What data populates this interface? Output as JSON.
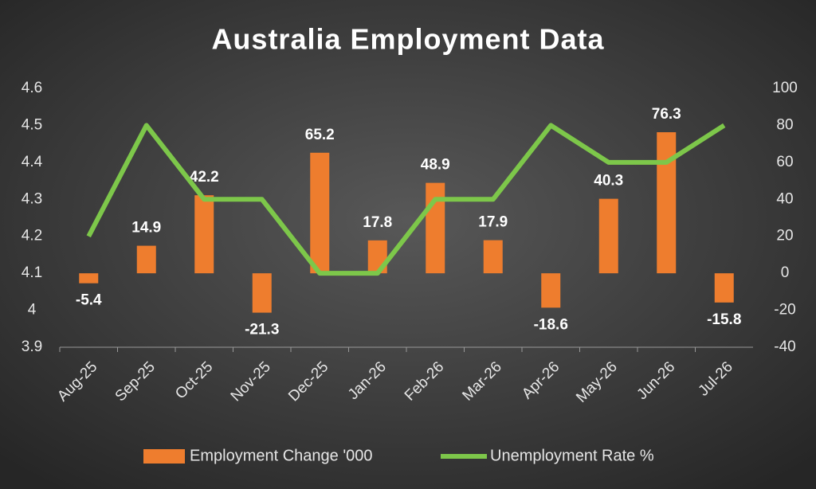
{
  "chart_data": {
    "type": "combo",
    "title": "Australia Employment Data",
    "categories": [
      "Aug-25",
      "Sep-25",
      "Oct-25",
      "Nov-25",
      "Dec-25",
      "Jan-26",
      "Feb-26",
      "Mar-26",
      "Apr-26",
      "May-26",
      "Jun-26",
      "Jul-26"
    ],
    "series": [
      {
        "name": "Employment Change '000",
        "type": "bar",
        "axis": "y2",
        "color": "#ee7d2e",
        "data_labels": true,
        "values": [
          -5.4,
          14.9,
          42.2,
          -21.3,
          65.2,
          17.8,
          48.9,
          17.9,
          -18.6,
          40.3,
          76.3,
          -15.8
        ]
      },
      {
        "name": "Unemployment Rate %",
        "type": "line",
        "color": "#7dc74a",
        "values": [
          4.2,
          4.5,
          4.3,
          4.3,
          4.1,
          4.1,
          4.3,
          4.3,
          4.5,
          4.4,
          4.4,
          4.5
        ]
      }
    ],
    "ylim": [
      3.9,
      4.6
    ],
    "yticks": [
      3.9,
      4,
      4.1,
      4.2,
      4.3,
      4.4,
      4.5,
      4.6
    ],
    "y2lim": [
      -40,
      100
    ],
    "y2ticks": [
      -40,
      -20,
      0,
      20,
      40,
      60,
      80,
      100
    ],
    "legend": "bottom"
  }
}
